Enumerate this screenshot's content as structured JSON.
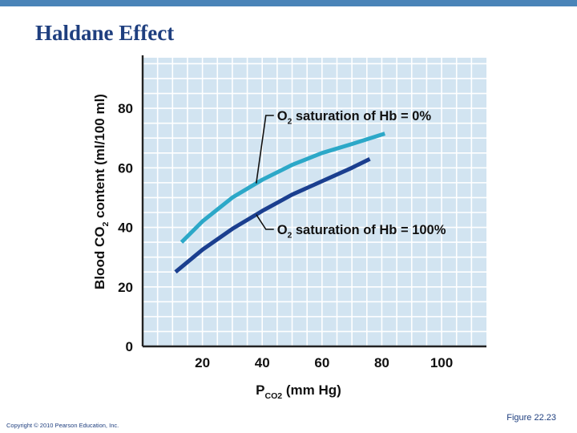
{
  "slide": {
    "title": "Haldane Effect",
    "copyright": "Copyright © 2010 Pearson Education, Inc.",
    "figure_label": "Figure 22.23",
    "bar_color": "#4a84b8",
    "title_color": "#1f3f7f"
  },
  "chart_data": {
    "type": "line",
    "title": "",
    "xlabel": {
      "main": "P",
      "sub": "CO2",
      "unit": " (mm Hg)"
    },
    "ylabel": {
      "pre": "Blood CO",
      "sub": "2",
      "post": " content (ml/100 ml)"
    },
    "xlim": [
      0,
      115
    ],
    "ylim": [
      0,
      97
    ],
    "xticks": [
      20,
      40,
      60,
      80,
      100
    ],
    "yticks": [
      0,
      20,
      40,
      60,
      80
    ],
    "grid": true,
    "plot_bg": "#d2e4f1",
    "series": [
      {
        "name": "O2 saturation of Hb = 0%",
        "label": {
          "pre": "O",
          "sub": "2",
          "post": " saturation of Hb = 0%"
        },
        "color": "#2ca8c8",
        "x": [
          13,
          20,
          30,
          40,
          50,
          60,
          70,
          81
        ],
        "y": [
          35,
          42,
          50,
          56,
          61,
          65,
          68,
          71.5
        ]
      },
      {
        "name": "O2 saturation of Hb = 100%",
        "label": {
          "pre": "O",
          "sub": "2",
          "post": " saturation of Hb = 100%"
        },
        "color": "#1b3f8f",
        "x": [
          11,
          20,
          30,
          40,
          50,
          60,
          70,
          76
        ],
        "y": [
          25,
          32.5,
          39.5,
          45.5,
          51,
          55.5,
          60,
          63
        ]
      }
    ]
  }
}
